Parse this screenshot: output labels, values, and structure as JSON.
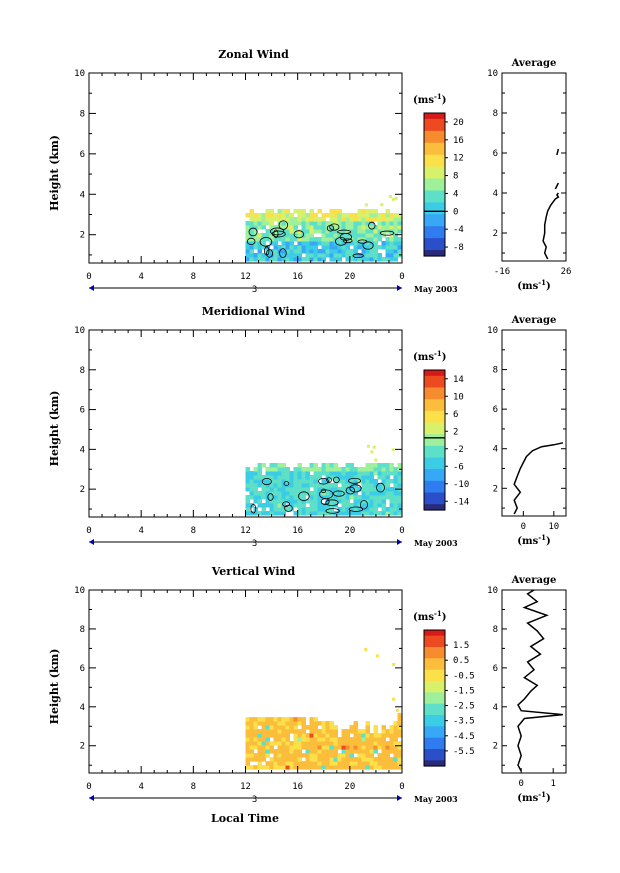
{
  "figure": {
    "xlabel": "Local Time",
    "date_label": "May 2003",
    "day_label": "3",
    "height_label": "Height (km)",
    "unit_label": "(ms",
    "unit_sup": "-1",
    "unit_close": ")",
    "average_title": "Average",
    "colors": {
      "colorscale": [
        "#2a2a7a",
        "#2b4fc9",
        "#2f7cf0",
        "#36a8f6",
        "#3ccde6",
        "#5ee0c8",
        "#9ff09a",
        "#d9f06a",
        "#fbe04a",
        "#fbbd3c",
        "#f78c2e",
        "#ee4a22",
        "#d61a1a"
      ]
    }
  },
  "chart_data": [
    {
      "type": "heatmap",
      "title": "Zonal Wind",
      "x_ticks": [
        "0",
        "4",
        "8",
        "12",
        "16",
        "20",
        "0"
      ],
      "xlim": [
        0,
        24
      ],
      "y_ticks": [
        "2",
        "4",
        "6",
        "8",
        "10"
      ],
      "ylim": [
        0.6,
        10
      ],
      "colorbar_ticks": [
        "20",
        "16",
        "12",
        "8",
        "4",
        "0",
        "-4",
        "-8"
      ],
      "colorbar_range": [
        -10,
        22
      ],
      "data_extent": {
        "time_start": 12,
        "time_end": 24,
        "height_min": 0.7,
        "height_max": 3.2
      },
      "average": {
        "xlim": [
          -16,
          26
        ],
        "x_ticks": [
          "-16",
          "26"
        ],
        "y_ticks": [
          "2",
          "4",
          "6",
          "8",
          "10"
        ],
        "profile": {
          "z": [
            0.7,
            1.0,
            1.3,
            1.6,
            2.0,
            2.4,
            2.8,
            3.1,
            3.4,
            3.7,
            3.8,
            3.9,
            4.0
          ],
          "u": [
            14,
            12,
            13,
            11,
            12,
            12,
            13,
            14,
            16,
            19,
            21,
            20,
            21
          ]
        },
        "segments": [
          {
            "z": [
              4.2,
              4.5
            ],
            "u": [
              19,
              21
            ]
          },
          {
            "z": [
              5.9,
              6.2
            ],
            "u": [
              20,
              21
            ]
          }
        ]
      }
    },
    {
      "type": "heatmap",
      "title": "Meridional Wind",
      "x_ticks": [
        "0",
        "4",
        "8",
        "12",
        "16",
        "20",
        "0"
      ],
      "xlim": [
        0,
        24
      ],
      "y_ticks": [
        "2",
        "4",
        "6",
        "8",
        "10"
      ],
      "ylim": [
        0.6,
        10
      ],
      "colorbar_ticks": [
        "14",
        "10",
        "6",
        "2",
        "-2",
        "-6",
        "-10",
        "-14"
      ],
      "colorbar_range": [
        -16,
        16
      ],
      "data_extent": {
        "time_start": 12,
        "time_end": 24,
        "height_min": 0.7,
        "height_max": 3.3
      },
      "average": {
        "xlim": [
          -7,
          14
        ],
        "x_ticks": [
          "0",
          "10"
        ],
        "y_ticks": [
          "2",
          "4",
          "6",
          "8",
          "10"
        ],
        "profile": {
          "z": [
            0.7,
            1.0,
            1.4,
            1.8,
            2.2,
            2.6,
            3.0,
            3.3,
            3.6,
            3.9,
            4.1,
            4.2,
            4.3
          ],
          "u": [
            -3,
            -2,
            -3,
            -1,
            -3,
            -2,
            -1,
            0,
            1,
            3,
            6,
            10,
            13
          ]
        },
        "segments": []
      }
    },
    {
      "type": "heatmap",
      "title": "Vertical Wind",
      "x_ticks": [
        "0",
        "4",
        "8",
        "12",
        "16",
        "20",
        "0"
      ],
      "xlim": [
        0,
        24
      ],
      "y_ticks": [
        "2",
        "4",
        "6",
        "8",
        "10"
      ],
      "ylim": [
        0.6,
        10
      ],
      "colorbar_ticks": [
        "1.5",
        "0.5",
        "-0.5",
        "-1.5",
        "-2.5",
        "-3.5",
        "-4.5",
        "-5.5"
      ],
      "colorbar_range": [
        -6.5,
        2.5
      ],
      "data_extent": {
        "time_start": 12,
        "time_end": 24,
        "height_min": 0.8,
        "height_max": 3.4
      },
      "average": {
        "xlim": [
          -0.6,
          1.4
        ],
        "x_ticks": [
          "0",
          "1"
        ],
        "y_ticks": [
          "2",
          "4",
          "6",
          "8",
          "10"
        ],
        "profile": {
          "z": [
            0.7,
            1.0,
            1.5,
            2.0,
            2.5,
            3.0,
            3.4,
            3.6,
            3.8,
            4.1,
            4.4,
            4.8,
            5.1,
            5.5,
            5.9,
            6.3,
            6.7,
            7.1,
            7.5,
            7.9,
            8.3,
            8.7,
            9.1,
            9.4,
            9.8,
            10.0
          ],
          "u": [
            0.0,
            -0.1,
            0.0,
            -0.1,
            0.0,
            -0.1,
            0.1,
            1.3,
            0.0,
            -0.1,
            0.1,
            0.3,
            0.5,
            0.1,
            0.4,
            0.2,
            0.6,
            0.3,
            0.7,
            0.5,
            0.2,
            0.8,
            0.1,
            0.5,
            0.2,
            0.4
          ]
        },
        "segments": []
      }
    }
  ]
}
